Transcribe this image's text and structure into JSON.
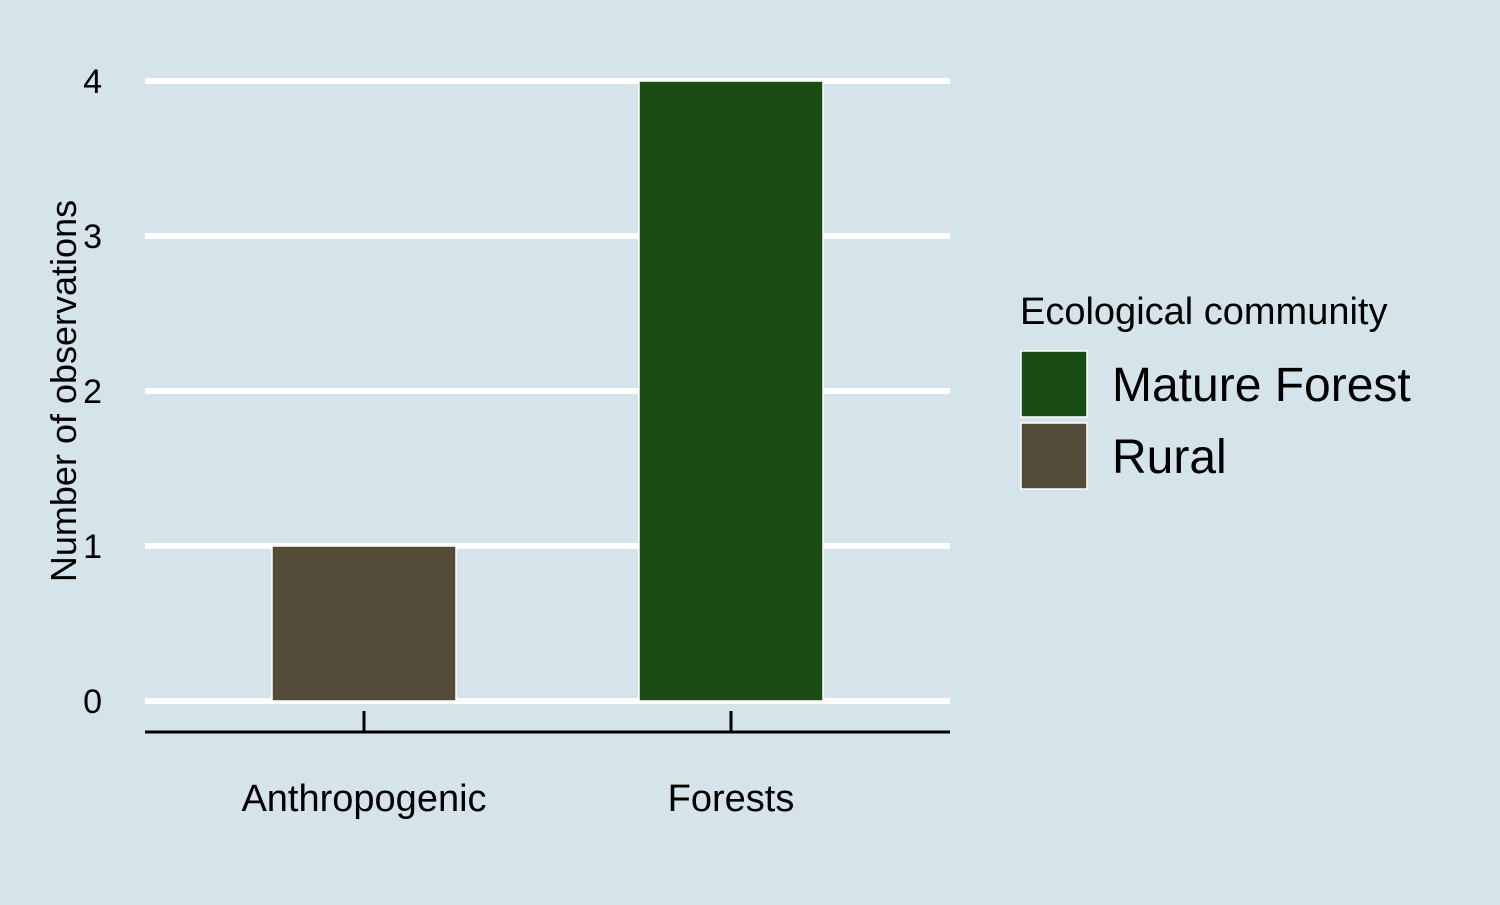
{
  "chart_data": {
    "type": "bar",
    "title": "",
    "xlabel": "",
    "ylabel": "Number of observations",
    "ylim": [
      0,
      4
    ],
    "yticks": [
      0,
      1,
      2,
      3,
      4
    ],
    "categories": [
      "Anthropogenic",
      "Forests"
    ],
    "bars": [
      {
        "category": "Anthropogenic",
        "value": 1,
        "community": "Rural"
      },
      {
        "category": "Forests",
        "value": 4,
        "community": "Mature Forest"
      }
    ],
    "legend": {
      "title": "Ecological community",
      "position": "right",
      "entries": [
        {
          "label": "Mature Forest",
          "color": "#1a4d14"
        },
        {
          "label": "Rural",
          "color": "#544c38"
        }
      ]
    },
    "grid": "horizontal-major",
    "colors": {
      "background": "#d5e4eb",
      "grid": "#ffffff",
      "axis": "#000000"
    }
  }
}
